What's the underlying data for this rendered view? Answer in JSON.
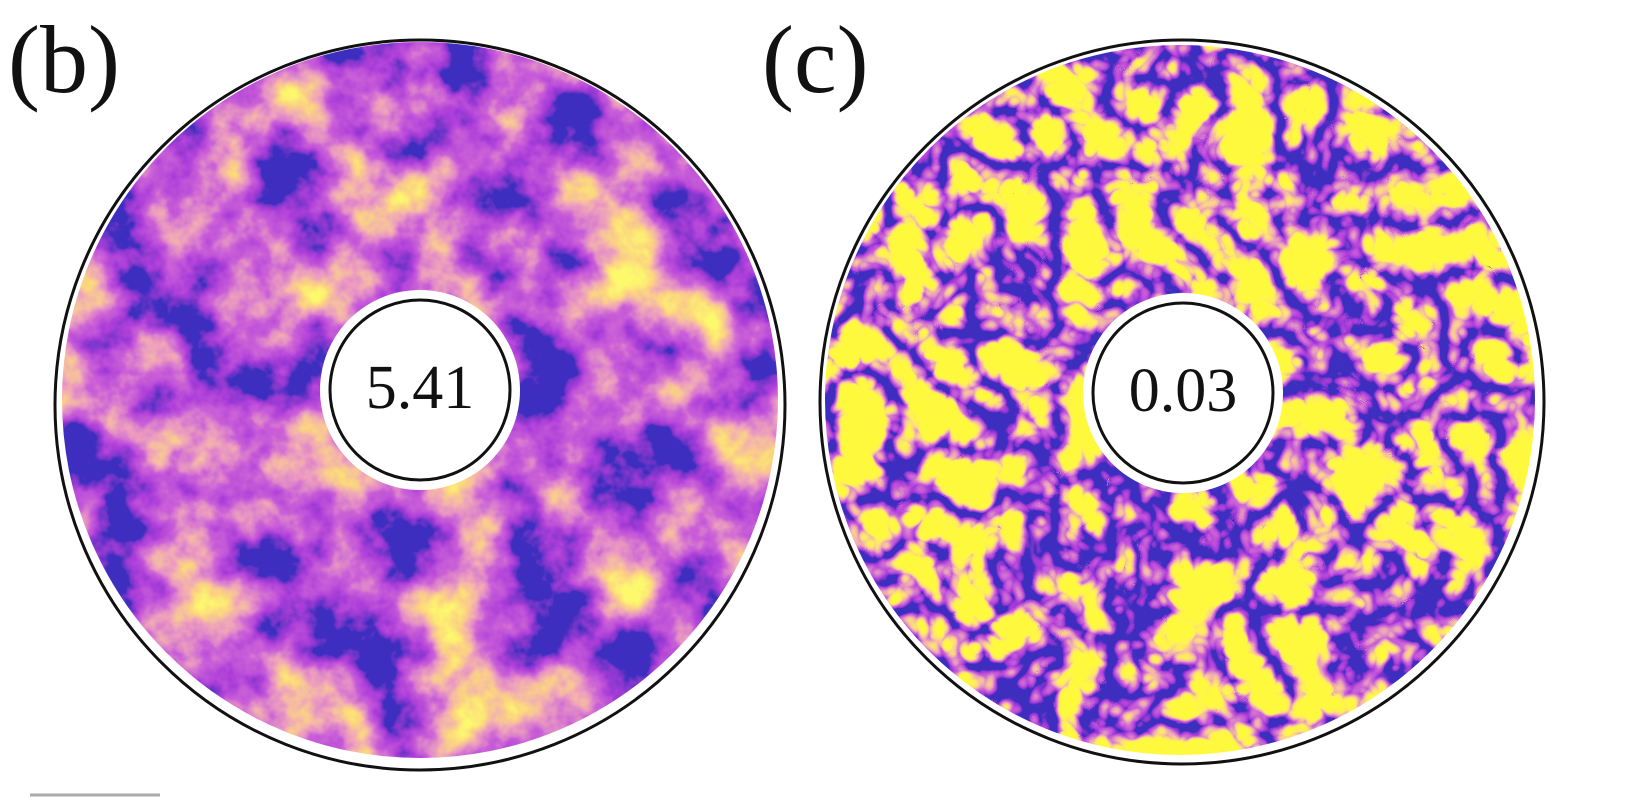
{
  "panels": [
    {
      "label": "(b)",
      "value": "5.41"
    },
    {
      "label": "(c)",
      "value": "0.03"
    }
  ]
}
